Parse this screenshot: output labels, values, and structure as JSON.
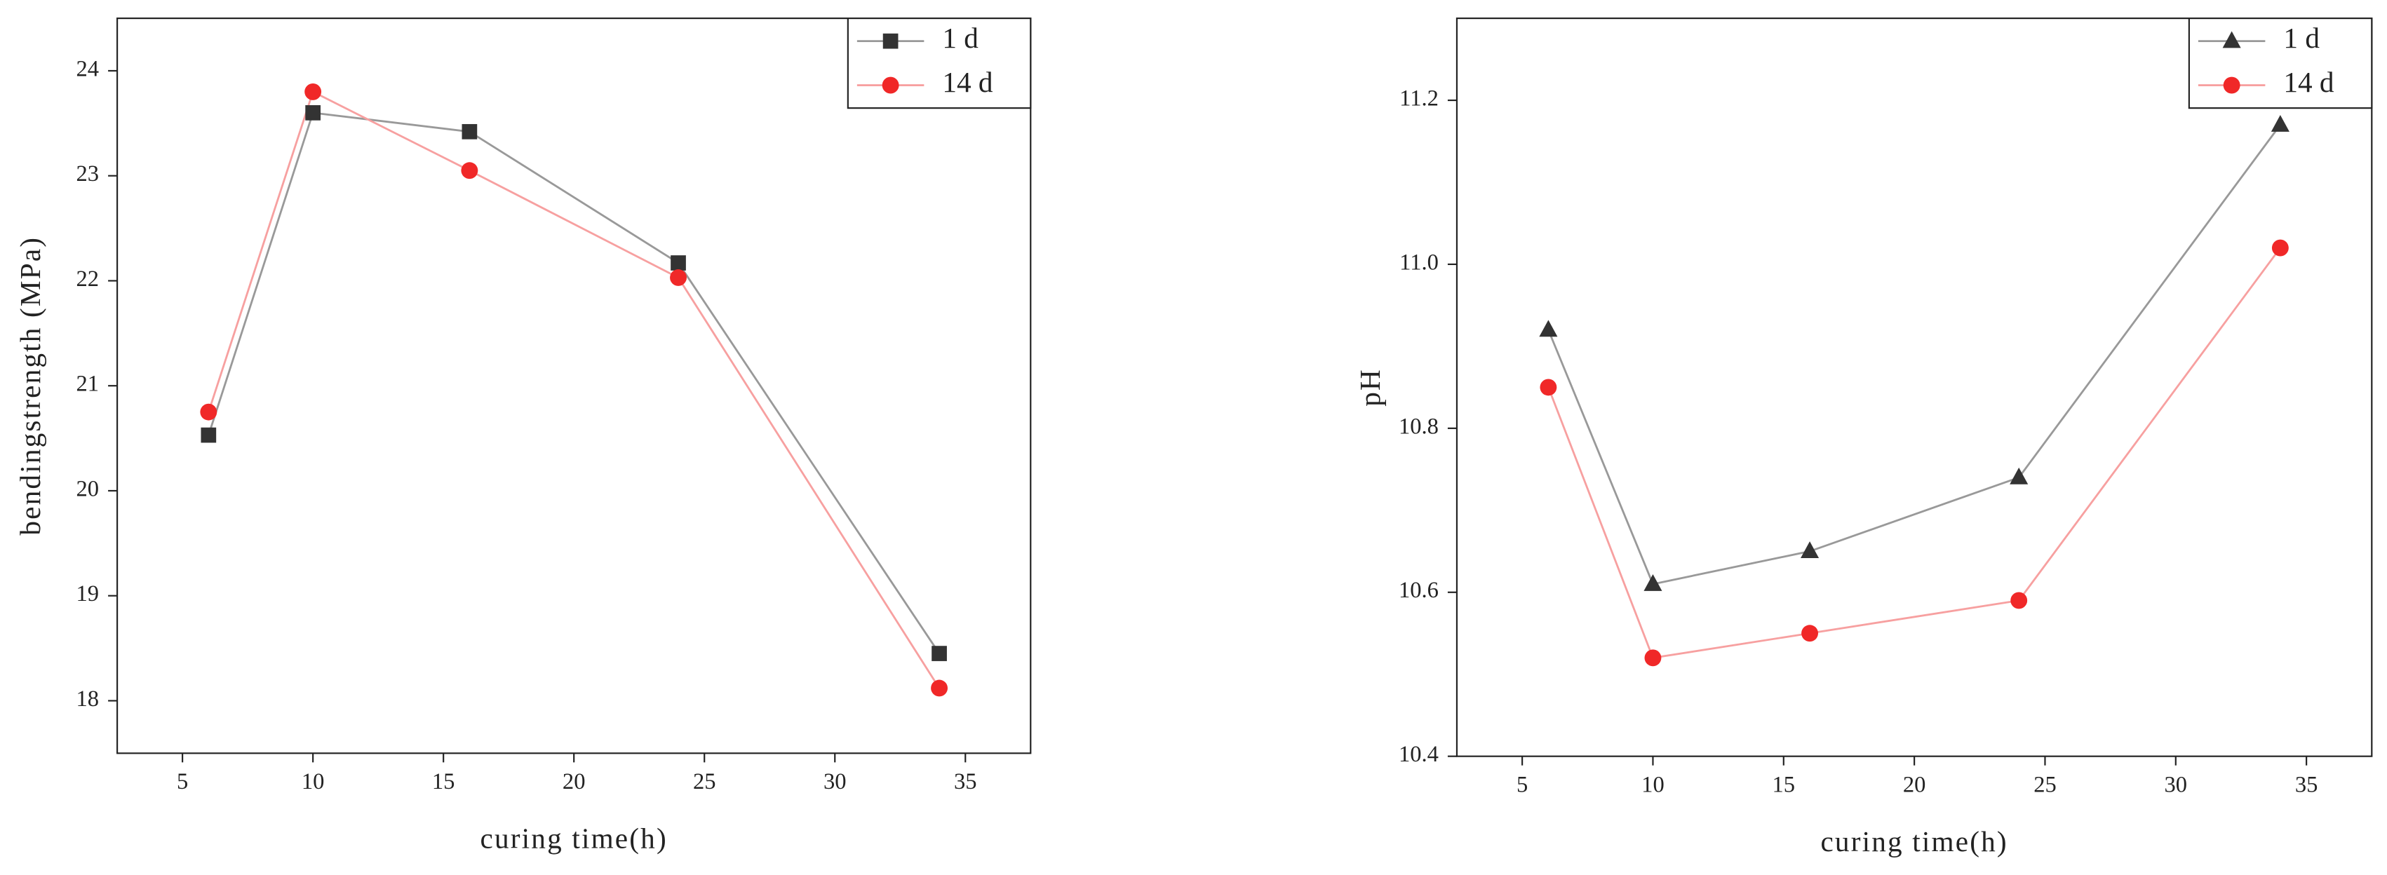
{
  "chart_data": [
    {
      "type": "line",
      "x_label": "curing time(h)",
      "y_label": "bendingstrength (MPa)",
      "x": [
        6,
        10,
        16,
        24,
        34
      ],
      "series": [
        {
          "name": "1 d",
          "color": "#333333",
          "line_color": "#999999",
          "marker": "square",
          "values": [
            20.53,
            23.6,
            23.42,
            22.17,
            18.45
          ]
        },
        {
          "name": "14 d",
          "color": "#f02828",
          "line_color": "#f7a0a0",
          "marker": "circle",
          "values": [
            20.75,
            23.8,
            23.05,
            22.03,
            18.12
          ]
        }
      ],
      "xlim": [
        2.5,
        37.5
      ],
      "xticks": [
        5,
        10,
        15,
        20,
        25,
        30,
        35
      ],
      "ylim": [
        17.5,
        24.5
      ],
      "yticks": [
        18,
        19,
        20,
        21,
        22,
        23,
        24
      ],
      "legend": "upper right"
    },
    {
      "type": "line",
      "x_label": "curing time(h)",
      "y_label": "pH",
      "x": [
        6,
        10,
        16,
        24,
        34
      ],
      "series": [
        {
          "name": "1 d",
          "color": "#333333",
          "line_color": "#999999",
          "marker": "triangle",
          "values": [
            10.92,
            10.61,
            10.65,
            10.74,
            11.17
          ]
        },
        {
          "name": "14 d",
          "color": "#f02828",
          "line_color": "#f7a0a0",
          "marker": "circle",
          "values": [
            10.85,
            10.52,
            10.55,
            10.59,
            11.02
          ]
        }
      ],
      "xlim": [
        2.5,
        37.5
      ],
      "xticks": [
        5,
        10,
        15,
        20,
        25,
        30,
        35
      ],
      "ylim": [
        10.4,
        11.3
      ],
      "yticks": [
        10.4,
        10.6,
        10.8,
        {
          "value": 11,
          "label": "11.0"
        },
        11.2
      ],
      "legend": "upper right"
    }
  ]
}
